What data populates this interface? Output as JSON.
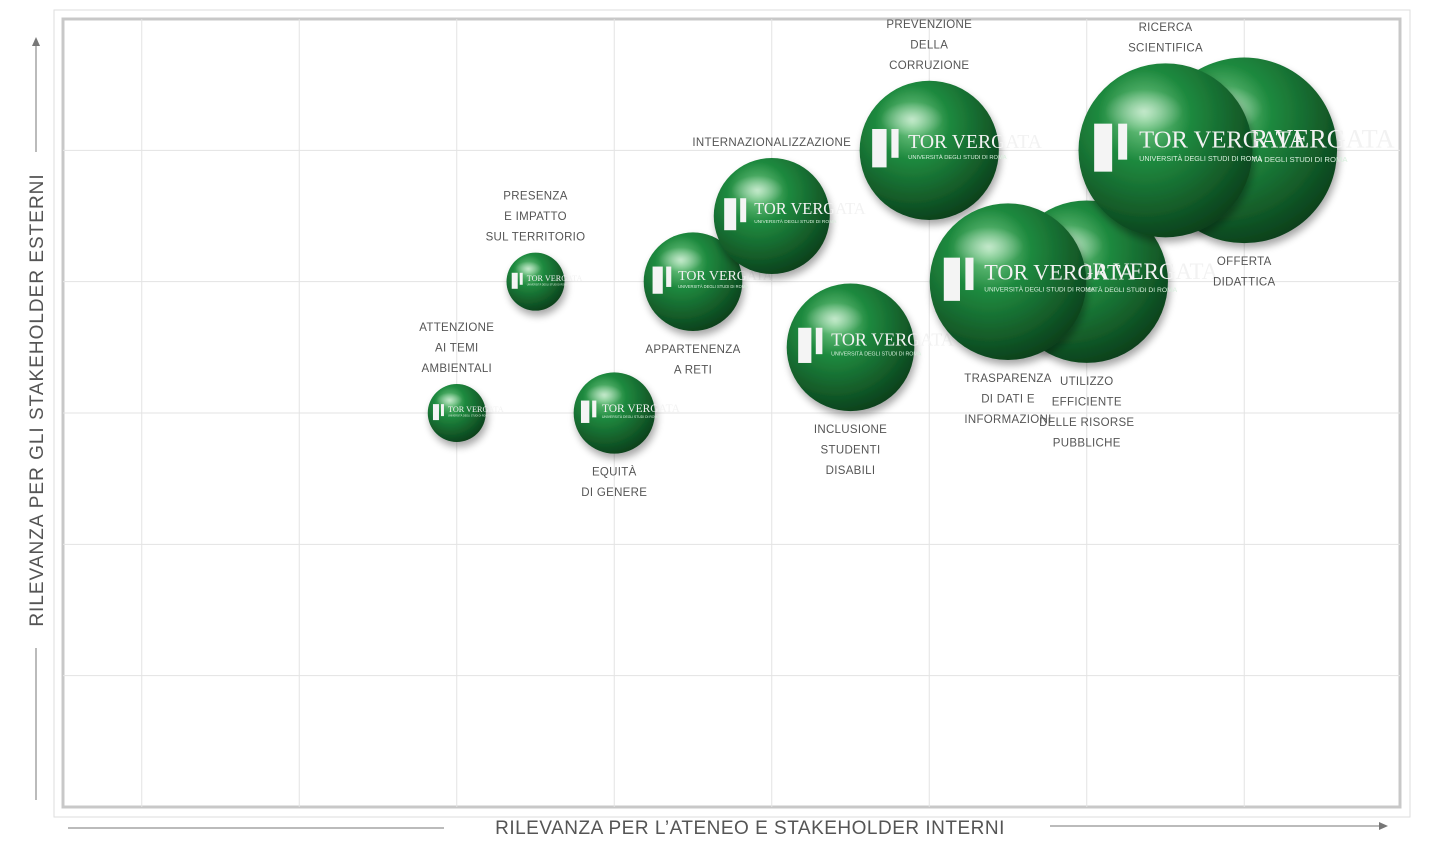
{
  "chart_data": {
    "type": "scatter",
    "variant": "bubble",
    "xlabel": "RILEVANZA PER L’ATENEO E STAKEHOLDER INTERNI",
    "ylabel": "RILEVANZA PER GLI STAKEHOLDER ESTERNI",
    "xlim": [
      0,
      8.5
    ],
    "ylim": [
      0,
      6
    ],
    "grid": true,
    "bubble_logo_text": "TOR VERGATA",
    "bubble_logo_subtext": "UNIVERSITÀ DEGLI STUDI DI ROMA",
    "colors": {
      "bubble_light": "#7fd18f",
      "bubble_mid": "#1f8a3f",
      "bubble_dark": "#0a3d1a",
      "grid": "#e3e3e3",
      "frame": "#c8c8c8"
    },
    "points": [
      {
        "label": [
          "ATTENZIONE",
          "AI TEMI",
          "AMBIENTALI"
        ],
        "x": 2.5,
        "y": 3.0,
        "size": 1.0,
        "label_pos": "above"
      },
      {
        "label": [
          "PRESENZA",
          "E IMPATTO",
          "SUL TERRITORIO"
        ],
        "x": 3.0,
        "y": 4.0,
        "size": 1.0,
        "label_pos": "above"
      },
      {
        "label": [
          "EQUITÀ",
          "DI GENERE"
        ],
        "x": 3.5,
        "y": 3.0,
        "size": 1.4,
        "label_pos": "below"
      },
      {
        "label": [
          "APPARTENENZA",
          "A RETI"
        ],
        "x": 4.0,
        "y": 4.0,
        "size": 1.7,
        "label_pos": "below"
      },
      {
        "label": [
          "INTERNAZIONALIZZAZIONE"
        ],
        "x": 4.5,
        "y": 4.5,
        "size": 2.0,
        "label_pos": "above"
      },
      {
        "label": [
          "INCLUSIONE",
          "STUDENTI",
          "DISABILI"
        ],
        "x": 5.0,
        "y": 3.5,
        "size": 2.2,
        "label_pos": "below"
      },
      {
        "label": [
          "PREVENZIONE",
          "DELLA",
          "CORRUZIONE"
        ],
        "x": 5.5,
        "y": 5.0,
        "size": 2.4,
        "label_pos": "above"
      },
      {
        "label": [
          "UTILIZZO",
          "EFFICIENTE",
          "DELLE RISORSE",
          "PUBBLICHE"
        ],
        "x": 6.5,
        "y": 4.0,
        "size": 2.8,
        "label_pos": "below"
      },
      {
        "label": [
          "TRASPARENZA",
          "DI DATI E",
          "INFORMAZIONI"
        ],
        "x": 6.0,
        "y": 4.0,
        "size": 2.7,
        "label_pos": "below"
      },
      {
        "label": [
          "OFFERTA",
          "DIDATTICA"
        ],
        "x": 7.5,
        "y": 5.0,
        "size": 3.2,
        "label_pos": "below"
      },
      {
        "label": [
          "RICERCA",
          "SCIENTIFICA"
        ],
        "x": 7.0,
        "y": 5.0,
        "size": 3.0,
        "label_pos": "above"
      }
    ]
  }
}
